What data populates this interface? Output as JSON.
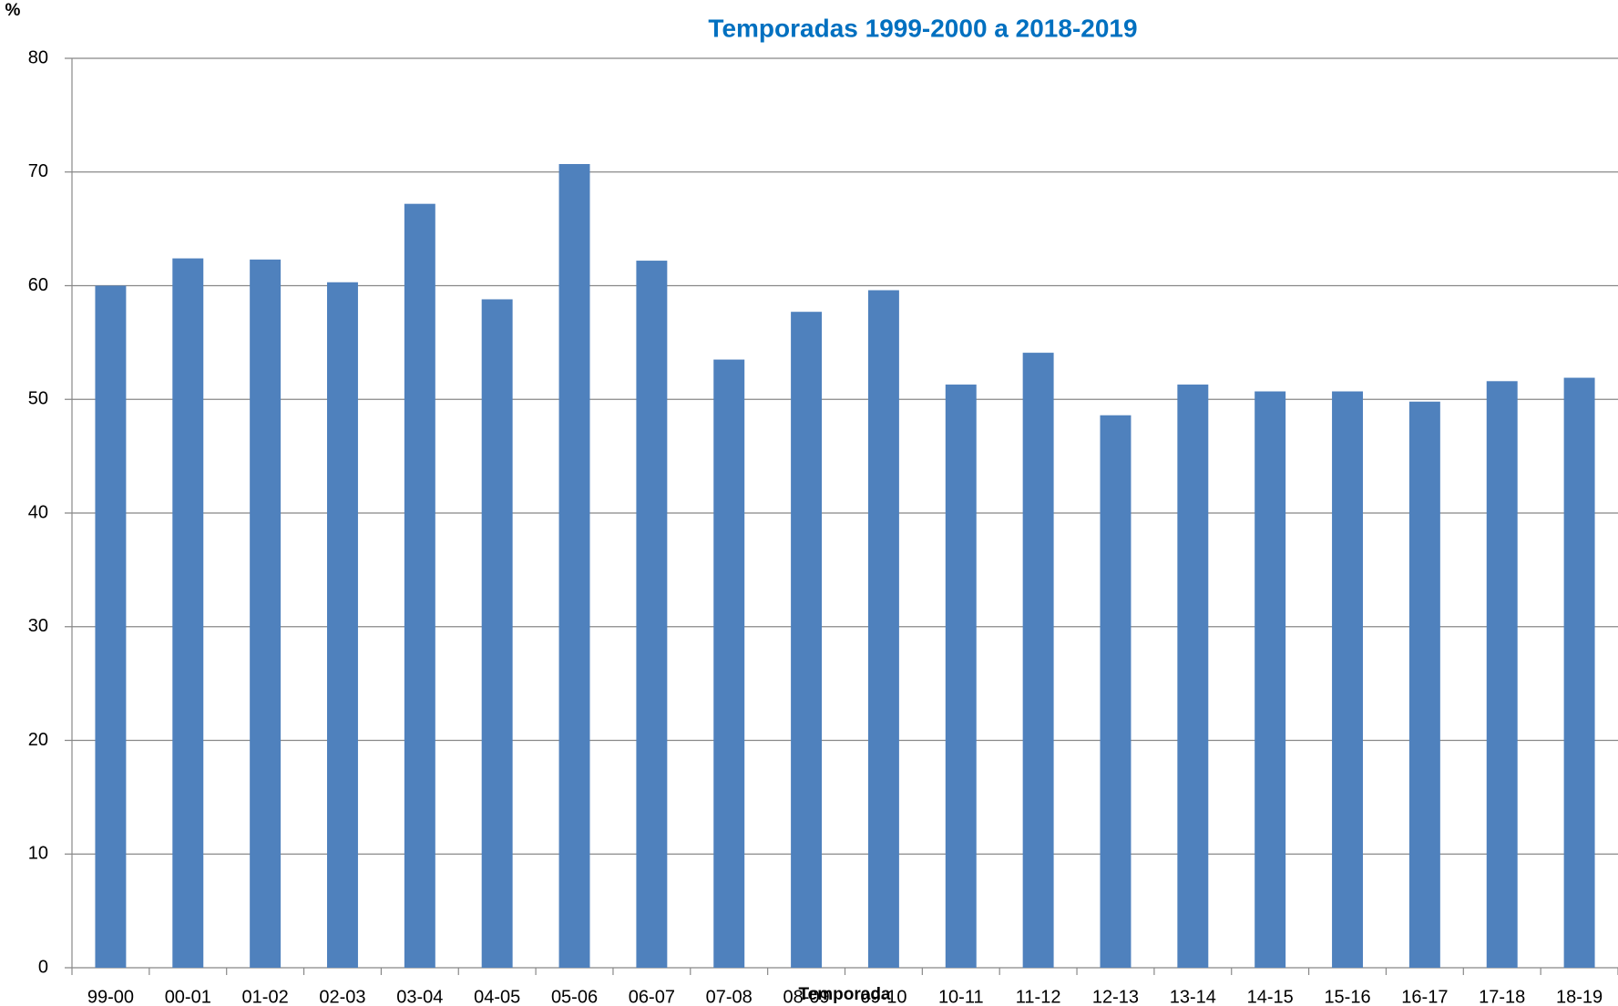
{
  "chart_data": {
    "type": "bar",
    "title": "Temporadas 1999-2000 a 2018-2019",
    "y_label": "%",
    "x_label": "Temporada",
    "categories": [
      "99-00",
      "00-01",
      "01-02",
      "02-03",
      "03-04",
      "04-05",
      "05-06",
      "06-07",
      "07-08",
      "08-09",
      "09-10",
      "10-11",
      "11-12",
      "12-13",
      "13-14",
      "14-15",
      "15-16",
      "16-17",
      "17-18",
      "18-19"
    ],
    "values": [
      60.0,
      62.4,
      62.3,
      60.3,
      67.2,
      58.8,
      70.7,
      62.2,
      53.5,
      57.7,
      59.6,
      51.3,
      54.1,
      48.6,
      51.3,
      50.7,
      50.7,
      49.8,
      51.6,
      51.9
    ],
    "color": "#4f81bd",
    "ylim": [
      0,
      80
    ],
    "yticks": [
      0,
      10,
      20,
      30,
      40,
      50,
      60,
      70,
      80
    ],
    "grid": true
  }
}
